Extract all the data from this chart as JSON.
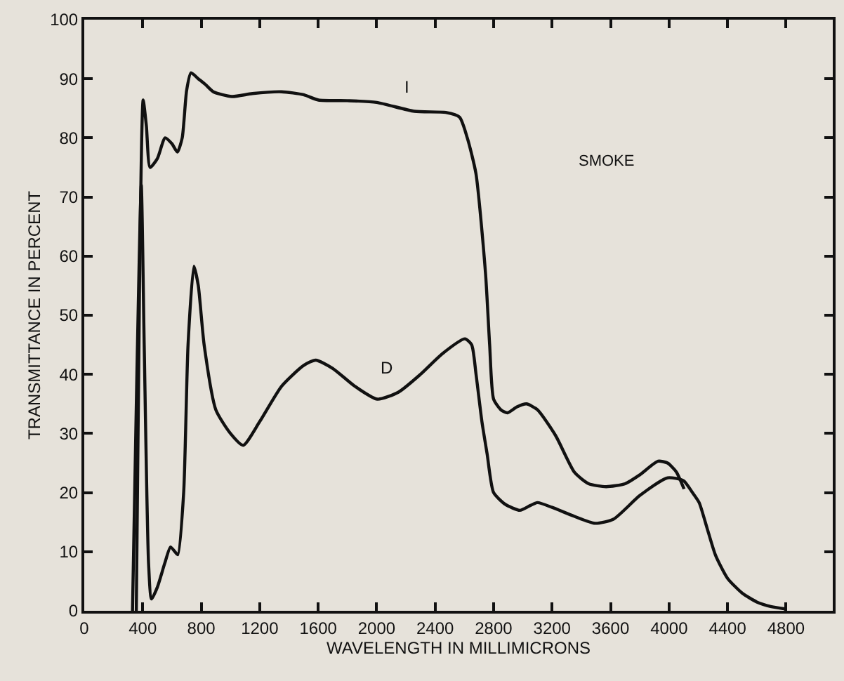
{
  "chart_data": {
    "type": "line",
    "xlabel": "WAVELENGTH IN MILLIMICRONS",
    "ylabel": "TRANSMITTANCE IN PERCENT",
    "xlim": [
      0,
      5120
    ],
    "ylim": [
      0,
      100
    ],
    "xticks": [
      0,
      400,
      800,
      1200,
      1600,
      2000,
      2400,
      2800,
      3200,
      3600,
      4000,
      4400,
      4800
    ],
    "yticks": [
      0,
      10,
      20,
      30,
      40,
      50,
      60,
      70,
      80,
      90,
      100
    ],
    "grid": false,
    "legend": false,
    "series": [
      {
        "name": "I",
        "color": "#111111",
        "x": [
          356,
          380,
          403,
          425,
          450,
          500,
          553,
          600,
          637,
          670,
          700,
          730,
          780,
          830,
          883,
          1010,
          1150,
          1350,
          1500,
          1602,
          1800,
          2000,
          2258,
          2473,
          2567,
          2620,
          2679,
          2745,
          2773,
          2800,
          2850,
          2895,
          2960,
          3025,
          3100,
          3225,
          3354,
          3450,
          3570,
          3700,
          3800,
          3925,
          3990,
          4050,
          4103
        ],
        "values": [
          0,
          60,
          86.4,
          82,
          75,
          76.5,
          80,
          79,
          77.6,
          80,
          88,
          91,
          90,
          89,
          87.8,
          87,
          87.5,
          87.8,
          87.3,
          86.4,
          86.3,
          86,
          84.5,
          84.3,
          83.5,
          80,
          74,
          57,
          45,
          35.8,
          34,
          33.5,
          34.5,
          35,
          34,
          29.6,
          23.4,
          21.5,
          21,
          21.5,
          23,
          25.3,
          25,
          23.5,
          20.6
        ]
      },
      {
        "name": "D",
        "color": "#111111",
        "x": [
          330,
          360,
          390,
          410,
          440,
          460,
          500,
          550,
          590,
          620,
          640,
          680,
          710,
          750,
          780,
          820,
          900,
          1000,
          1087,
          1200,
          1350,
          1500,
          1583,
          1700,
          1850,
          2005,
          2150,
          2300,
          2450,
          2604,
          2650,
          2680,
          2720,
          2756,
          2800,
          2880,
          2980,
          3050,
          3100,
          3200,
          3350,
          3494,
          3620,
          3800,
          3990,
          4100,
          4160,
          4206,
          4260,
          4318,
          4400,
          4500,
          4600,
          4700,
          4800
        ],
        "values": [
          0,
          40,
          72,
          45,
          8,
          2,
          4,
          8,
          10.8,
          10,
          9.5,
          20,
          45,
          58.3,
          55,
          45,
          34,
          30,
          28,
          32,
          38,
          41.5,
          42.4,
          41,
          38,
          35.8,
          37,
          40,
          43.5,
          46,
          45,
          40,
          32,
          26.5,
          20,
          18,
          17,
          17.8,
          18.3,
          17.5,
          16,
          14.8,
          15.5,
          19.5,
          22.5,
          22,
          20,
          18.3,
          14,
          9.4,
          5.5,
          3,
          1.5,
          0.7,
          0.3
        ]
      }
    ],
    "annotations": [
      "SMOKE"
    ]
  }
}
